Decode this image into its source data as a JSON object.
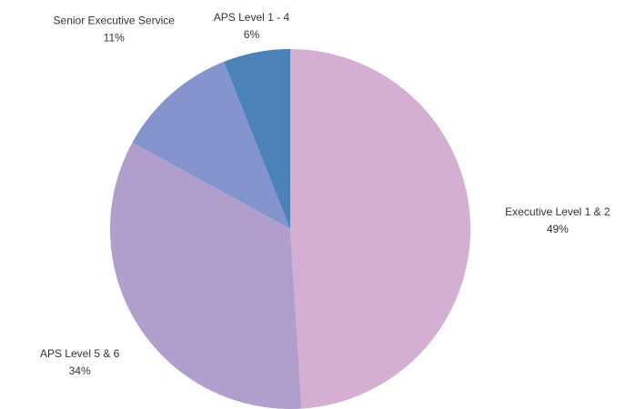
{
  "chart_data": {
    "type": "pie",
    "categories": [
      "Executive Level 1 & 2",
      "APS Level 5 & 6",
      "Senior Executive Service",
      "APS Level 1 - 4"
    ],
    "values": [
      49,
      34,
      11,
      6
    ],
    "value_labels": [
      "49%",
      "34%",
      "11%",
      "6%"
    ],
    "colors": [
      "#d5aed3",
      "#b09fcd",
      "#8494cc",
      "#4a82b9"
    ]
  }
}
